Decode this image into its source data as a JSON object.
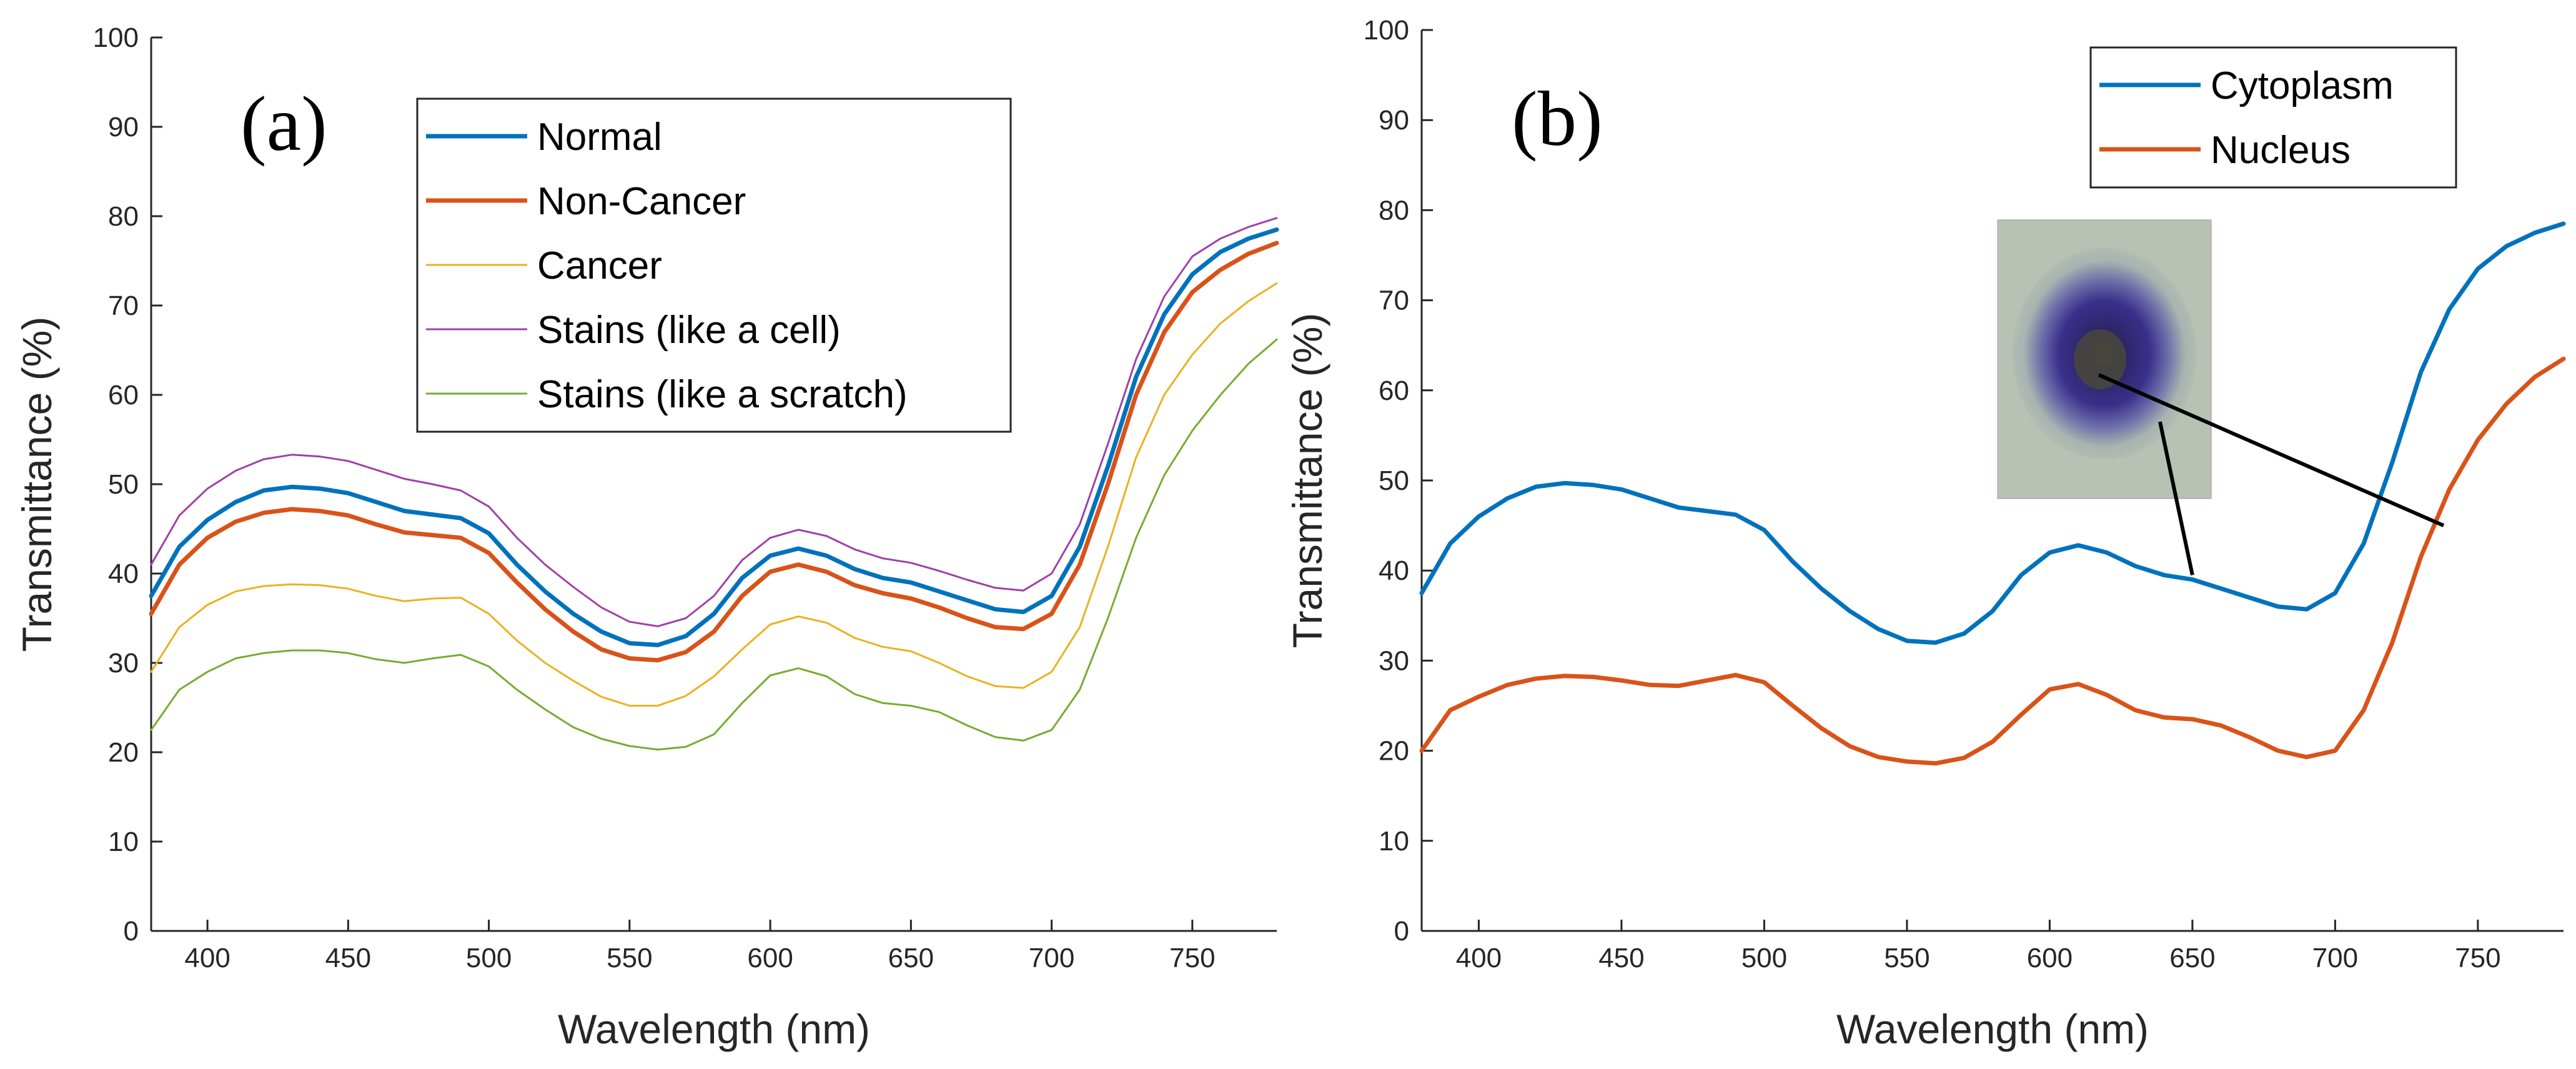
{
  "colors": {
    "normal": "#0072BD",
    "non_cancer": "#D95319",
    "cancer": "#EDB120",
    "stains_cell": "#A040A6",
    "stains_scratch": "#77AC30",
    "cytoplasm": "#0072BD",
    "nucleus": "#D95319",
    "axis": "#262626"
  },
  "chart_data": [
    {
      "type": "line",
      "panel_label": "(a)",
      "xlabel": "Wavelength (nm)",
      "ylabel": "Transmittance (%)",
      "xlim": [
        380,
        780
      ],
      "ylim": [
        0,
        100
      ],
      "xticks": [
        400,
        450,
        500,
        550,
        600,
        650,
        700,
        750
      ],
      "yticks": [
        0,
        10,
        20,
        30,
        40,
        50,
        60,
        70,
        80,
        90,
        100
      ],
      "grid": false,
      "legend_position": "top-right",
      "x": [
        380,
        390,
        400,
        410,
        420,
        430,
        440,
        450,
        460,
        470,
        480,
        490,
        500,
        510,
        520,
        530,
        540,
        550,
        560,
        570,
        580,
        590,
        600,
        610,
        620,
        630,
        640,
        650,
        660,
        670,
        680,
        690,
        700,
        710,
        720,
        730,
        740,
        750,
        760,
        770,
        780
      ],
      "series": [
        {
          "name": "Normal",
          "color_key": "normal",
          "width": 7,
          "values": [
            37.5,
            43,
            46,
            48,
            49.3,
            49.7,
            49.5,
            49,
            48,
            47,
            46.6,
            46.2,
            44.5,
            41,
            38,
            35.5,
            33.5,
            32.2,
            32,
            33,
            35.5,
            39.5,
            42,
            42.8,
            42,
            40.5,
            39.5,
            39,
            38,
            37,
            36,
            35.7,
            37.5,
            43,
            52,
            62,
            69,
            73.5,
            76,
            77.5,
            78.5
          ]
        },
        {
          "name": "Non-Cancer",
          "color_key": "non_cancer",
          "width": 7,
          "values": [
            35.5,
            41,
            44,
            45.8,
            46.8,
            47.2,
            47,
            46.5,
            45.5,
            44.6,
            44.3,
            44,
            42.3,
            39,
            36,
            33.5,
            31.5,
            30.5,
            30.3,
            31.2,
            33.5,
            37.5,
            40.2,
            41,
            40.2,
            38.7,
            37.8,
            37.2,
            36.2,
            35,
            34,
            33.8,
            35.5,
            41,
            50,
            60,
            67,
            71.5,
            74,
            75.8,
            77
          ]
        },
        {
          "name": "Cancer",
          "color_key": "cancer",
          "width": 3,
          "values": [
            29,
            34,
            36.5,
            38,
            38.6,
            38.8,
            38.7,
            38.3,
            37.5,
            36.9,
            37.2,
            37.3,
            35.5,
            32.5,
            30,
            28,
            26.2,
            25.2,
            25.2,
            26.3,
            28.5,
            31.5,
            34.3,
            35.2,
            34.5,
            32.8,
            31.8,
            31.3,
            30,
            28.5,
            27.4,
            27.2,
            29,
            34,
            43,
            53,
            60,
            64.5,
            68,
            70.5,
            72.5
          ]
        },
        {
          "name": "Stains (like a cell)",
          "color_key": "stains_cell",
          "width": 3,
          "values": [
            41,
            46.5,
            49.5,
            51.5,
            52.8,
            53.3,
            53.1,
            52.6,
            51.6,
            50.6,
            50,
            49.3,
            47.5,
            44,
            41,
            38.5,
            36.2,
            34.6,
            34.1,
            35,
            37.5,
            41.5,
            44,
            44.9,
            44.2,
            42.7,
            41.7,
            41.2,
            40.3,
            39.3,
            38.4,
            38.1,
            40,
            45.5,
            54.5,
            64,
            71,
            75.5,
            77.5,
            78.8,
            79.8
          ]
        },
        {
          "name": "Stains (like a scratch)",
          "color_key": "stains_scratch",
          "width": 3,
          "values": [
            22.5,
            27,
            29,
            30.5,
            31.1,
            31.4,
            31.4,
            31.1,
            30.4,
            30,
            30.5,
            30.9,
            29.6,
            27,
            24.8,
            22.8,
            21.5,
            20.7,
            20.3,
            20.6,
            22,
            25.5,
            28.6,
            29.4,
            28.5,
            26.5,
            25.5,
            25.2,
            24.5,
            23,
            21.7,
            21.3,
            22.5,
            27,
            35,
            44,
            51,
            56,
            60,
            63.5,
            66.2
          ]
        }
      ]
    },
    {
      "type": "line",
      "panel_label": "(b)",
      "xlabel": "Wavelength (nm)",
      "ylabel": "Transmittance (%)",
      "xlim": [
        380,
        780
      ],
      "ylim": [
        0,
        100
      ],
      "xticks": [
        400,
        450,
        500,
        550,
        600,
        650,
        700,
        750
      ],
      "yticks": [
        0,
        10,
        20,
        30,
        40,
        50,
        60,
        70,
        80,
        90,
        100
      ],
      "grid": false,
      "legend_position": "top-right",
      "x": [
        380,
        390,
        400,
        410,
        420,
        430,
        440,
        450,
        460,
        470,
        480,
        490,
        500,
        510,
        520,
        530,
        540,
        550,
        560,
        570,
        580,
        590,
        600,
        610,
        620,
        630,
        640,
        650,
        660,
        670,
        680,
        690,
        700,
        710,
        720,
        730,
        740,
        750,
        760,
        770,
        780
      ],
      "series": [
        {
          "name": "Cytoplasm",
          "color_key": "cytoplasm",
          "width": 7,
          "values": [
            37.5,
            43,
            46,
            48,
            49.3,
            49.7,
            49.5,
            49,
            48,
            47,
            46.6,
            46.2,
            44.5,
            41,
            38,
            35.5,
            33.5,
            32.2,
            32,
            33,
            35.5,
            39.5,
            42,
            42.8,
            42,
            40.5,
            39.5,
            39,
            38,
            37,
            36,
            35.7,
            37.5,
            43,
            52,
            62,
            69,
            73.5,
            76,
            77.5,
            78.5
          ]
        },
        {
          "name": "Nucleus",
          "color_key": "nucleus",
          "width": 7,
          "values": [
            20,
            24.5,
            26,
            27.3,
            28,
            28.3,
            28.2,
            27.8,
            27.3,
            27.2,
            27.8,
            28.4,
            27.6,
            25,
            22.5,
            20.5,
            19.3,
            18.8,
            18.6,
            19.2,
            21,
            24,
            26.8,
            27.4,
            26.2,
            24.5,
            23.7,
            23.5,
            22.8,
            21.5,
            20,
            19.3,
            20,
            24.5,
            32,
            41.5,
            49,
            54.5,
            58.5,
            61.5,
            63.5
          ]
        }
      ],
      "inset_pointers": [
        {
          "target_x": 738,
          "target_y": 45
        },
        {
          "target_x": 650,
          "target_y": 39.5
        }
      ]
    }
  ]
}
